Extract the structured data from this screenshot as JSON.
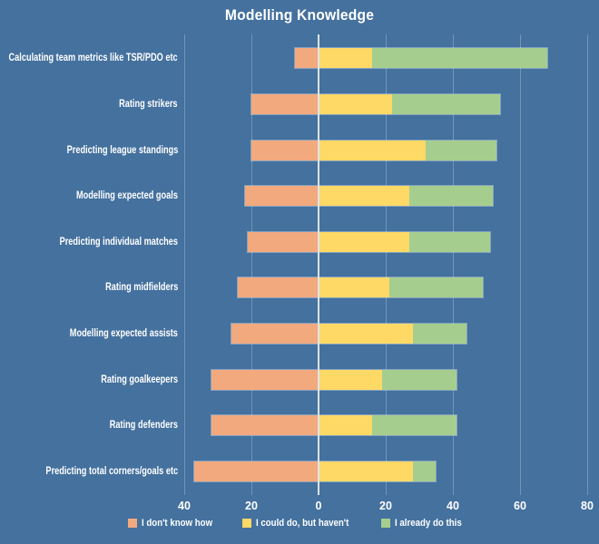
{
  "colors": {
    "background": "#44719E",
    "text": "#FFFFFF",
    "gridline": "rgba(255,255,255,0.25)",
    "zero_line": "#DDE3EC",
    "bar_outline": "rgba(255,255,255,0.35)"
  },
  "chart_data": {
    "type": "bar",
    "orientation": "horizontal",
    "diverging": true,
    "title": "Modelling Knowledge",
    "xlabel": "",
    "ylabel": "",
    "xlim": [
      -40,
      80
    ],
    "grid": true,
    "legend_position": "bottom",
    "categories": [
      "Calculating team metrics like TSR/PDO etc",
      "Rating strikers",
      "Predicting league standings",
      "Modelling expected goals",
      "Predicting individual matches",
      "Rating midfielders",
      "Modelling expected assists",
      "Rating goalkeepers",
      "Rating defenders",
      "Predicting total corners/goals etc"
    ],
    "series": [
      {
        "name": "I don't know how",
        "color": "#F2A97E",
        "side": "negative",
        "values": [
          7,
          20,
          20,
          22,
          21,
          24,
          26,
          32,
          32,
          37
        ]
      },
      {
        "name": "I could do, but haven't",
        "color": "#FFD966",
        "side": "positive",
        "values": [
          16,
          22,
          32,
          27,
          27,
          21,
          28,
          19,
          16,
          28
        ]
      },
      {
        "name": "I already do this",
        "color": "#A5CE8E",
        "side": "positive",
        "values": [
          52,
          32,
          21,
          25,
          24,
          28,
          16,
          22,
          25,
          7
        ]
      }
    ],
    "x_ticks": [
      {
        "value": -40,
        "label": "40"
      },
      {
        "value": -20,
        "label": "20"
      },
      {
        "value": 0,
        "label": "0"
      },
      {
        "value": 20,
        "label": "20"
      },
      {
        "value": 40,
        "label": "40"
      },
      {
        "value": 60,
        "label": "60"
      },
      {
        "value": 80,
        "label": "80"
      }
    ]
  }
}
